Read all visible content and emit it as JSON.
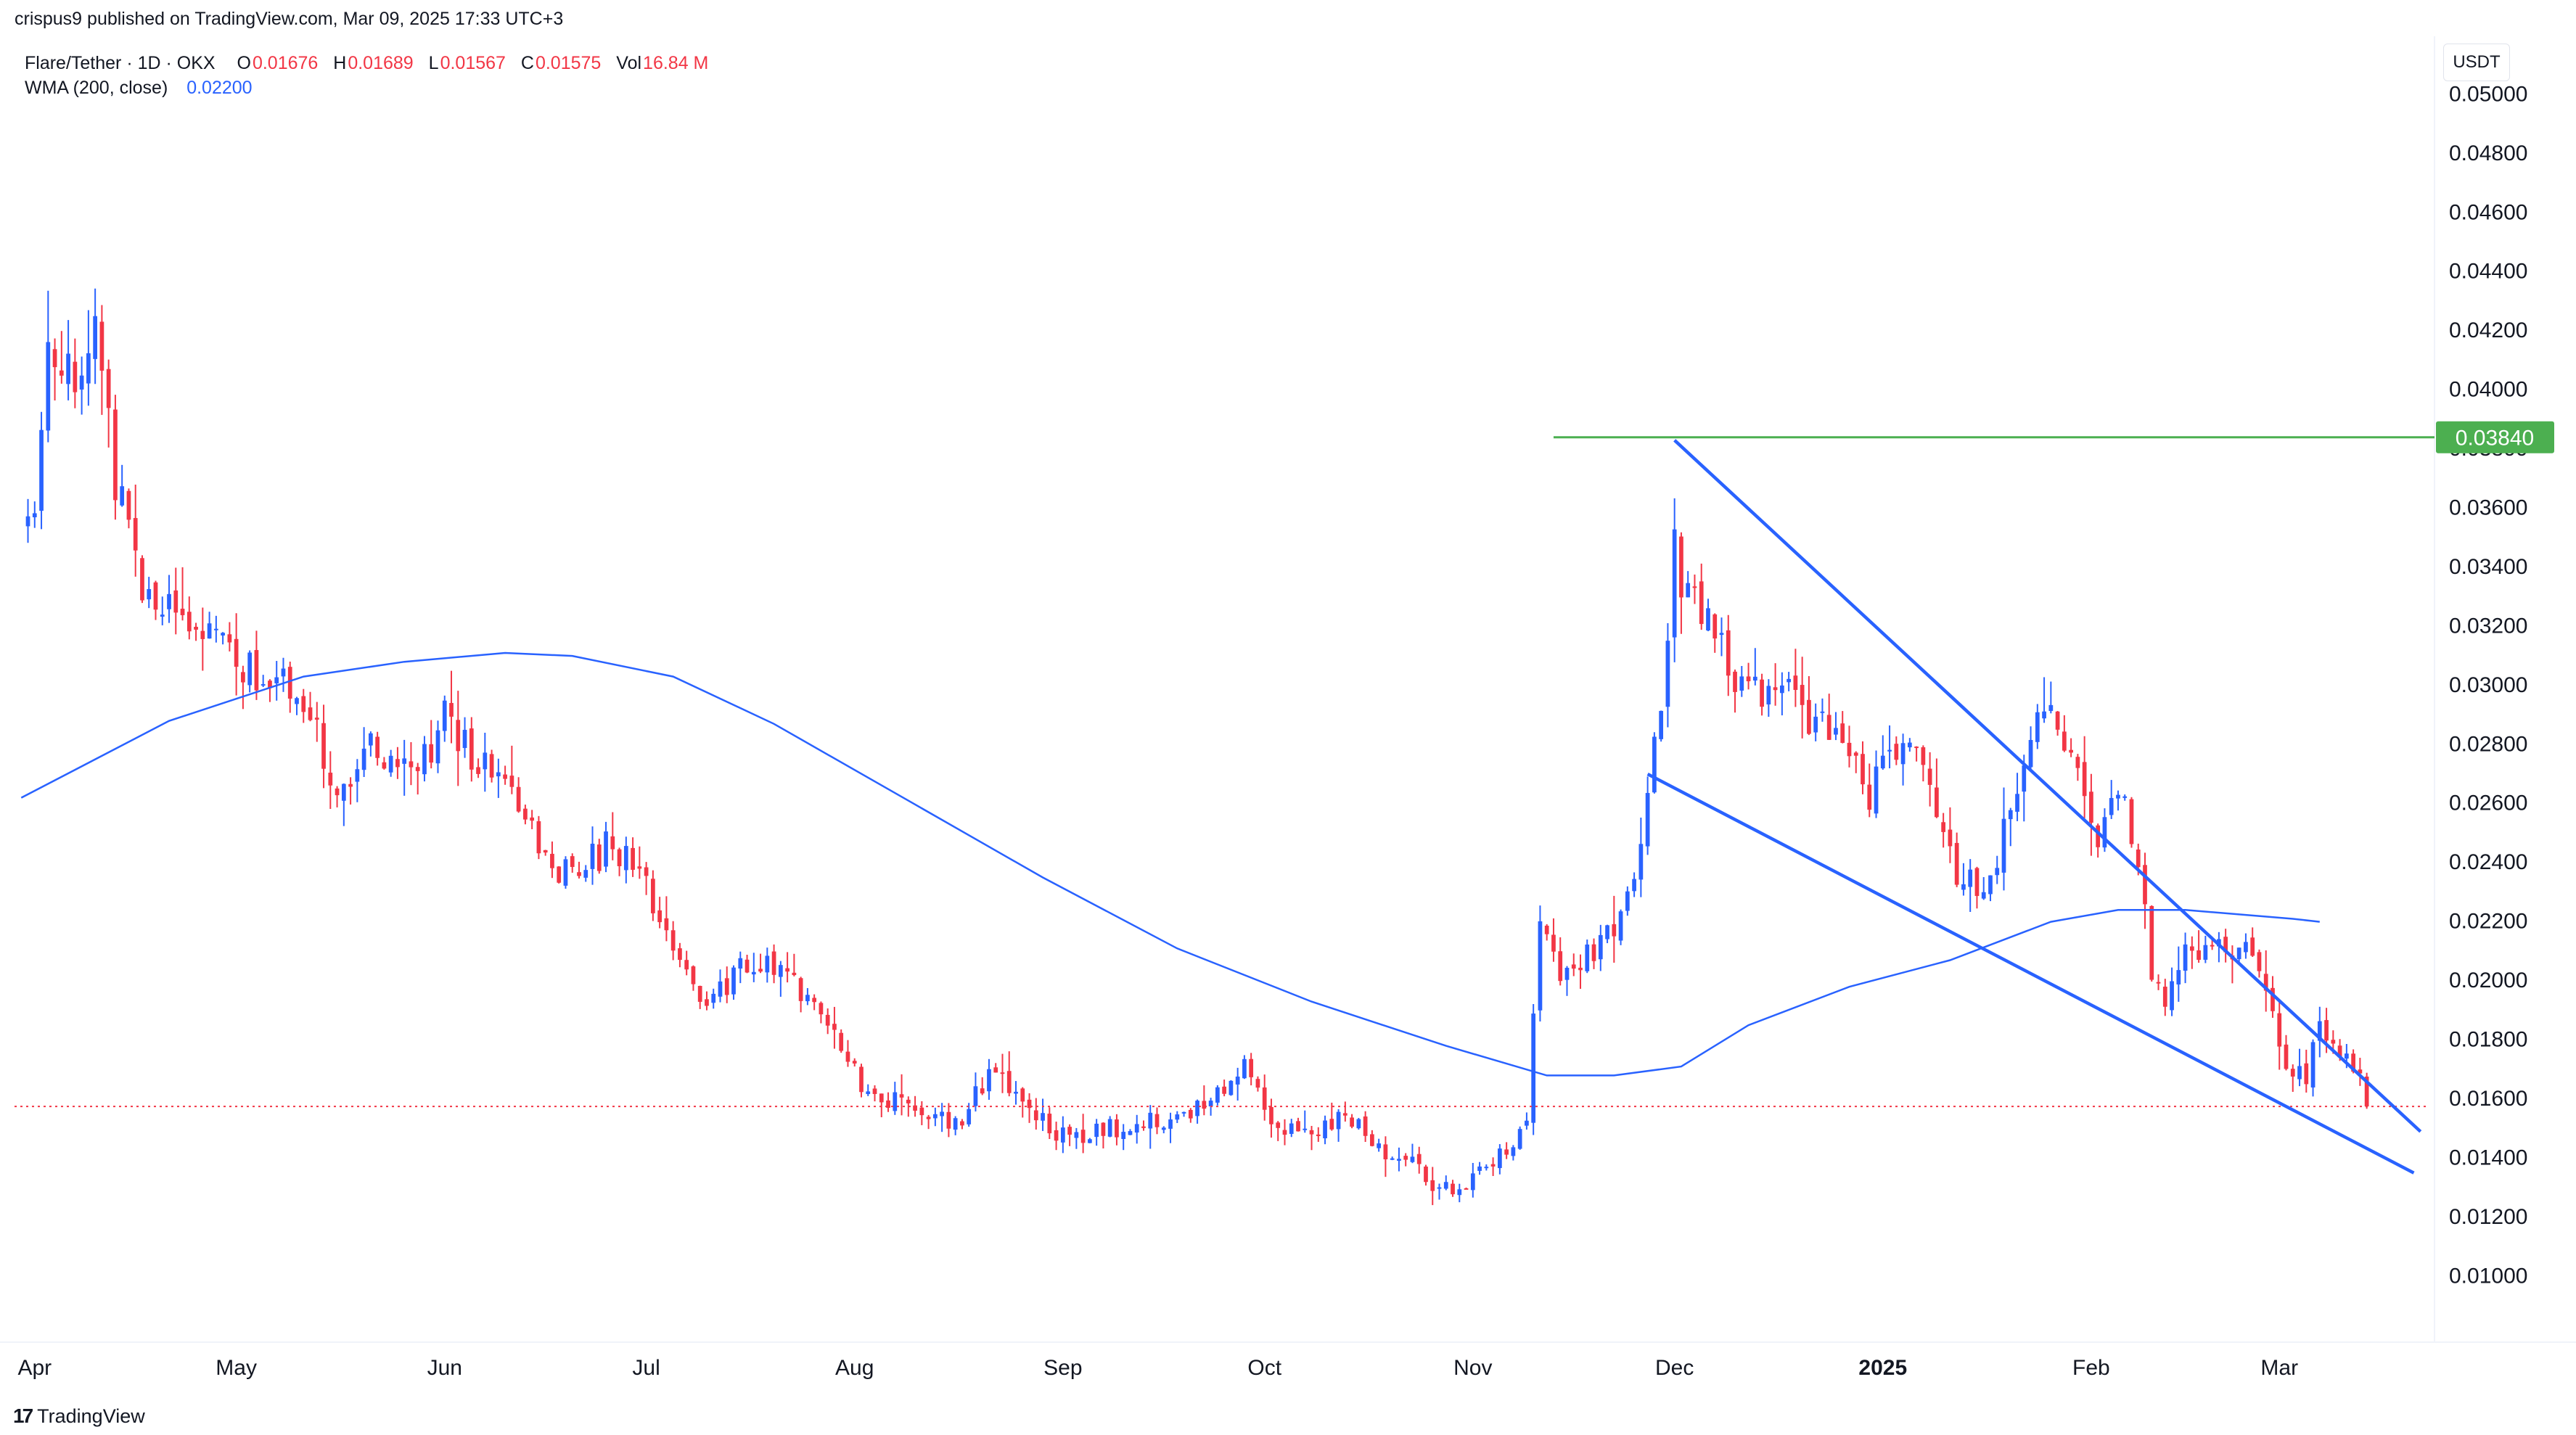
{
  "header": {
    "published": "crispus9 published on TradingView.com, Mar 09, 2025 17:33 UTC+3"
  },
  "legend": {
    "symbol": "Flare/Tether · 1D · OKX",
    "o_label": "O",
    "o_value": "0.01676",
    "h_label": "H",
    "h_value": "0.01689",
    "l_label": "L",
    "l_value": "0.01567",
    "c_label": "C",
    "c_value": "0.01575",
    "vol_label": "Vol",
    "vol_value": "16.84 M",
    "indicator": "WMA (200, close)",
    "indicator_value": "0.02200"
  },
  "axis": {
    "unit": "USDT"
  },
  "brand": "TradingView",
  "colors": {
    "up": "#2962ff",
    "down": "#f23645",
    "wma": "#2962ff",
    "resistance": "#4caf50",
    "trendline": "#2962ff",
    "price_line": "#f23645"
  },
  "chart_data": {
    "type": "candlestick",
    "symbol": "Flare/Tether",
    "interval": "1D",
    "exchange": "OKX",
    "y_ticks": [
      "0.05000",
      "0.04800",
      "0.04600",
      "0.04400",
      "0.04200",
      "0.04000",
      "0.03800",
      "0.03600",
      "0.03400",
      "0.03200",
      "0.03000",
      "0.02800",
      "0.02600",
      "0.02400",
      "0.02200",
      "0.02000",
      "0.01800",
      "0.01600",
      "0.01400",
      "0.01200",
      "0.01000"
    ],
    "ylim": [
      0.009,
      0.0505
    ],
    "x_ticks": [
      {
        "label": "Apr",
        "day": 0
      },
      {
        "label": "May",
        "day": 30
      },
      {
        "label": "Jun",
        "day": 61
      },
      {
        "label": "Jul",
        "day": 91
      },
      {
        "label": "Aug",
        "day": 122
      },
      {
        "label": "Sep",
        "day": 153
      },
      {
        "label": "Oct",
        "day": 183
      },
      {
        "label": "Nov",
        "day": 214
      },
      {
        "label": "Dec",
        "day": 244
      },
      {
        "label": "2025",
        "day": 275,
        "bold": true
      },
      {
        "label": "Feb",
        "day": 306
      },
      {
        "label": "Mar",
        "day": 334
      }
    ],
    "x_range_days": [
      -3,
      356
    ],
    "current_price": 0.01575,
    "resistance": {
      "value": 0.0384,
      "label": "0.03840",
      "from_day": 226
    },
    "wedge_upper": [
      [
        244,
        0.0383
      ],
      [
        355,
        0.0149
      ]
    ],
    "wedge_lower": [
      [
        240,
        0.027
      ],
      [
        354,
        0.0135
      ]
    ],
    "wma_anchors": [
      [
        -2,
        0.0262
      ],
      [
        20,
        0.0288
      ],
      [
        40,
        0.0303
      ],
      [
        55,
        0.0308
      ],
      [
        70,
        0.0311
      ],
      [
        80,
        0.031
      ],
      [
        95,
        0.0303
      ],
      [
        110,
        0.0287
      ],
      [
        130,
        0.0261
      ],
      [
        150,
        0.0235
      ],
      [
        170,
        0.0211
      ],
      [
        190,
        0.0193
      ],
      [
        210,
        0.0178
      ],
      [
        225,
        0.0168
      ],
      [
        235,
        0.0168
      ],
      [
        245,
        0.0171
      ],
      [
        255,
        0.0185
      ],
      [
        270,
        0.0198
      ],
      [
        285,
        0.0207
      ],
      [
        300,
        0.022
      ],
      [
        310,
        0.0224
      ],
      [
        320,
        0.0224
      ],
      [
        336,
        0.0221
      ],
      [
        340,
        0.022
      ]
    ],
    "price_anchors": [
      [
        0,
        0.0358
      ],
      [
        2,
        0.0425
      ],
      [
        4,
        0.0405
      ],
      [
        7,
        0.041
      ],
      [
        9,
        0.0415
      ],
      [
        12,
        0.037
      ],
      [
        15,
        0.0338
      ],
      [
        18,
        0.0321
      ],
      [
        22,
        0.0328
      ],
      [
        25,
        0.0317
      ],
      [
        30,
        0.0308
      ],
      [
        35,
        0.0298
      ],
      [
        38,
        0.0302
      ],
      [
        41,
        0.0286
      ],
      [
        46,
        0.0263
      ],
      [
        50,
        0.028
      ],
      [
        54,
        0.0273
      ],
      [
        58,
        0.0276
      ],
      [
        61,
        0.029
      ],
      [
        65,
        0.0275
      ],
      [
        68,
        0.0272
      ],
      [
        72,
        0.0258
      ],
      [
        75,
        0.0244
      ],
      [
        78,
        0.0236
      ],
      [
        82,
        0.024
      ],
      [
        86,
        0.0246
      ],
      [
        90,
        0.0238
      ],
      [
        94,
        0.0212
      ],
      [
        97,
        0.02
      ],
      [
        100,
        0.0189
      ],
      [
        104,
        0.0202
      ],
      [
        108,
        0.0208
      ],
      [
        112,
        0.0203
      ],
      [
        116,
        0.0192
      ],
      [
        120,
        0.018
      ],
      [
        123,
        0.0165
      ],
      [
        126,
        0.0161
      ],
      [
        130,
        0.0157
      ],
      [
        134,
        0.0152
      ],
      [
        138,
        0.0153
      ],
      [
        142,
        0.0168
      ],
      [
        146,
        0.0163
      ],
      [
        150,
        0.0152
      ],
      [
        154,
        0.0146
      ],
      [
        158,
        0.015
      ],
      [
        162,
        0.0149
      ],
      [
        166,
        0.0152
      ],
      [
        170,
        0.0153
      ],
      [
        174,
        0.0157
      ],
      [
        178,
        0.0168
      ],
      [
        180,
        0.0172
      ],
      [
        182,
        0.016
      ],
      [
        186,
        0.0148
      ],
      [
        190,
        0.015
      ],
      [
        194,
        0.0153
      ],
      [
        198,
        0.0149
      ],
      [
        202,
        0.0141
      ],
      [
        206,
        0.0136
      ],
      [
        209,
        0.013
      ],
      [
        212,
        0.0128
      ],
      [
        215,
        0.0134
      ],
      [
        219,
        0.0142
      ],
      [
        222,
        0.015
      ],
      [
        224,
        0.022
      ],
      [
        227,
        0.0205
      ],
      [
        230,
        0.0206
      ],
      [
        234,
        0.0215
      ],
      [
        237,
        0.0228
      ],
      [
        240,
        0.0264
      ],
      [
        242,
        0.0298
      ],
      [
        244,
        0.0345
      ],
      [
        246,
        0.033
      ],
      [
        250,
        0.0318
      ],
      [
        253,
        0.0296
      ],
      [
        257,
        0.03
      ],
      [
        261,
        0.0299
      ],
      [
        265,
        0.0287
      ],
      [
        269,
        0.028
      ],
      [
        273,
        0.0262
      ],
      [
        277,
        0.028
      ],
      [
        280,
        0.0274
      ],
      [
        283,
        0.0255
      ],
      [
        287,
        0.0231
      ],
      [
        291,
        0.0237
      ],
      [
        295,
        0.0262
      ],
      [
        298,
        0.0298
      ],
      [
        301,
        0.0281
      ],
      [
        305,
        0.0266
      ],
      [
        307,
        0.0249
      ],
      [
        310,
        0.0264
      ],
      [
        313,
        0.0242
      ],
      [
        315,
        0.0205
      ],
      [
        317,
        0.0195
      ],
      [
        320,
        0.0213
      ],
      [
        324,
        0.021
      ],
      [
        328,
        0.0211
      ],
      [
        332,
        0.02
      ],
      [
        334,
        0.0177
      ],
      [
        336,
        0.0168
      ],
      [
        338,
        0.0166
      ],
      [
        340,
        0.019
      ],
      [
        342,
        0.0175
      ],
      [
        344,
        0.0172
      ],
      [
        346,
        0.0168
      ],
      [
        347,
        0.01575
      ]
    ]
  }
}
